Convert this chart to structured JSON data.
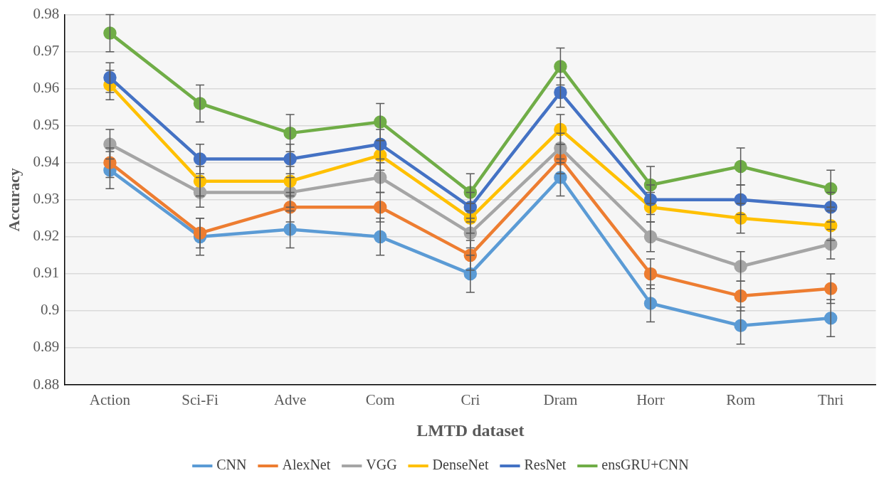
{
  "chart_data": {
    "type": "line",
    "xlabel": "LMTD dataset",
    "ylabel": "Accuracy",
    "categories": [
      "Action",
      "Sci-Fi",
      "Adve",
      "Com",
      "Cri",
      "Dram",
      "Horr",
      "Rom",
      "Thri"
    ],
    "series": [
      {
        "name": "CNN",
        "color": "#5b9bd5",
        "values": [
          0.938,
          0.92,
          0.922,
          0.92,
          0.91,
          0.936,
          0.902,
          0.896,
          0.898
        ],
        "errors": [
          0.005,
          0.005,
          0.005,
          0.005,
          0.005,
          0.005,
          0.005,
          0.005,
          0.005
        ]
      },
      {
        "name": "AlexNet",
        "color": "#ed7d31",
        "values": [
          0.94,
          0.921,
          0.928,
          0.928,
          0.915,
          0.941,
          0.91,
          0.904,
          0.906
        ],
        "errors": [
          0.004,
          0.004,
          0.004,
          0.004,
          0.004,
          0.004,
          0.004,
          0.004,
          0.004
        ]
      },
      {
        "name": "VGG",
        "color": "#a5a5a5",
        "values": [
          0.945,
          0.932,
          0.932,
          0.936,
          0.921,
          0.944,
          0.92,
          0.912,
          0.918
        ],
        "errors": [
          0.004,
          0.004,
          0.004,
          0.004,
          0.004,
          0.004,
          0.004,
          0.004,
          0.004
        ]
      },
      {
        "name": "DenseNet",
        "color": "#ffc000",
        "values": [
          0.961,
          0.935,
          0.935,
          0.942,
          0.925,
          0.949,
          0.928,
          0.925,
          0.923
        ],
        "errors": [
          0.004,
          0.004,
          0.004,
          0.004,
          0.004,
          0.004,
          0.004,
          0.004,
          0.004
        ]
      },
      {
        "name": "ResNet",
        "color": "#4472c4",
        "values": [
          0.963,
          0.941,
          0.941,
          0.945,
          0.928,
          0.959,
          0.93,
          0.93,
          0.928
        ],
        "errors": [
          0.004,
          0.004,
          0.004,
          0.004,
          0.004,
          0.004,
          0.004,
          0.004,
          0.004
        ]
      },
      {
        "name": "ensGRU+CNN",
        "color": "#70ad47",
        "values": [
          0.975,
          0.956,
          0.948,
          0.951,
          0.932,
          0.966,
          0.934,
          0.939,
          0.933
        ],
        "errors": [
          0.005,
          0.005,
          0.005,
          0.005,
          0.005,
          0.005,
          0.005,
          0.005,
          0.005
        ]
      }
    ],
    "ylim": [
      0.88,
      0.98
    ],
    "yticks": [
      0.88,
      0.89,
      0.9,
      0.91,
      0.92,
      0.93,
      0.94,
      0.95,
      0.96,
      0.97,
      0.98
    ],
    "grid": "y",
    "legend": "bottom",
    "marker": "circle",
    "line_style": "solid"
  }
}
